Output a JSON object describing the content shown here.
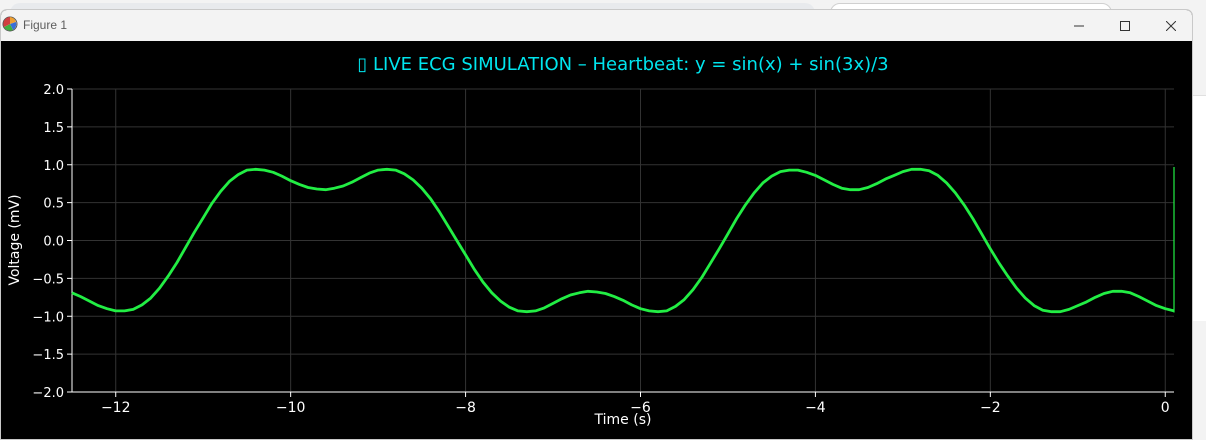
{
  "window": {
    "title": "Figure 1"
  },
  "chart_data": {
    "type": "line",
    "title": "▯ LIVE ECG SIMULATION – Heartbeat: y = sin(x) + sin(3x)/3",
    "xlabel": "Time (s)",
    "ylabel": "Voltage (mV)",
    "xlim": [
      -12.5,
      0.1
    ],
    "ylim": [
      -2.0,
      2.0
    ],
    "xticks": [
      -12,
      -10,
      -8,
      -6,
      -4,
      -2,
      0
    ],
    "xtick_labels": [
      "−12",
      "−10",
      "−8",
      "−6",
      "−4",
      "−2",
      "0"
    ],
    "yticks": [
      2.0,
      1.5,
      1.0,
      0.5,
      0.0,
      -0.5,
      -1.0,
      -1.5,
      -2.0
    ],
    "ytick_labels": [
      "2.0",
      "1.5",
      "1.0",
      "0.5",
      "0.0",
      "−0.5",
      "−1.0",
      "−1.5",
      "−2.0"
    ],
    "grid": true,
    "series": [
      {
        "color": "#22ee44",
        "x": [
          -12.5,
          -12.4,
          -12.3,
          -12.2,
          -12.1,
          -12.0,
          -11.9,
          -11.8,
          -11.7,
          -11.6,
          -11.5,
          -11.4,
          -11.3,
          -11.2,
          -11.1,
          -11.0,
          -10.9,
          -10.8,
          -10.7,
          -10.6,
          -10.5,
          -10.4,
          -10.3,
          -10.2,
          -10.1,
          -10.0,
          -9.9,
          -9.8,
          -9.7,
          -9.6,
          -9.5,
          -9.4,
          -9.3,
          -9.2,
          -9.1,
          -9.0,
          -8.9,
          -8.8,
          -8.7,
          -8.6,
          -8.5,
          -8.4,
          -8.3,
          -8.2,
          -8.1,
          -8.0,
          -7.9,
          -7.8,
          -7.7,
          -7.6,
          -7.5,
          -7.4,
          -7.3,
          -7.2,
          -7.1,
          -7.0,
          -6.9,
          -6.8,
          -6.7,
          -6.6,
          -6.5,
          -6.4,
          -6.3,
          -6.2,
          -6.1,
          -6.0,
          -5.9,
          -5.8,
          -5.7,
          -5.6,
          -5.5,
          -5.4,
          -5.3,
          -5.2,
          -5.1,
          -5.0,
          -4.9,
          -4.8,
          -4.7,
          -4.6,
          -4.5,
          -4.4,
          -4.3,
          -4.2,
          -4.1,
          -4.0,
          -3.9,
          -3.8,
          -3.7,
          -3.6,
          -3.5,
          -3.4,
          -3.3,
          -3.2,
          -3.1,
          -3.0,
          -2.9,
          -2.8,
          -2.7,
          -2.6,
          -2.5,
          -2.4,
          -2.3,
          -2.2,
          -2.1,
          -2.0,
          -1.9,
          -1.8,
          -1.7,
          -1.6,
          -1.5,
          -1.4,
          -1.3,
          -1.2,
          -1.1,
          -1.0,
          -0.9,
          -0.8,
          -0.7,
          -0.6,
          -0.5,
          -0.4,
          -0.3,
          -0.2,
          -0.1,
          0.0,
          0.1
        ],
        "y": [
          -0.69,
          -0.74,
          -0.8,
          -0.86,
          -0.9,
          -0.93,
          -0.93,
          -0.91,
          -0.85,
          -0.76,
          -0.63,
          -0.47,
          -0.29,
          -0.09,
          0.11,
          0.3,
          0.49,
          0.65,
          0.78,
          0.87,
          0.93,
          0.94,
          0.93,
          0.9,
          0.85,
          0.79,
          0.74,
          0.7,
          0.68,
          0.67,
          0.69,
          0.72,
          0.77,
          0.83,
          0.89,
          0.93,
          0.94,
          0.93,
          0.88,
          0.8,
          0.69,
          0.55,
          0.38,
          0.19,
          0.0,
          -0.19,
          -0.38,
          -0.55,
          -0.69,
          -0.8,
          -0.88,
          -0.93,
          -0.94,
          -0.93,
          -0.89,
          -0.83,
          -0.77,
          -0.72,
          -0.69,
          -0.67,
          -0.68,
          -0.7,
          -0.74,
          -0.79,
          -0.85,
          -0.9,
          -0.93,
          -0.94,
          -0.93,
          -0.87,
          -0.78,
          -0.65,
          -0.49,
          -0.3,
          -0.11,
          0.09,
          0.29,
          0.47,
          0.63,
          0.76,
          0.85,
          0.91,
          0.93,
          0.93,
          0.9,
          0.86,
          0.8,
          0.74,
          0.69,
          0.67,
          0.67,
          0.7,
          0.75,
          0.81,
          0.86,
          0.91,
          0.94,
          0.94,
          0.92,
          0.86,
          0.76,
          0.63,
          0.47,
          0.29,
          0.09,
          -0.11,
          -0.3,
          -0.47,
          -0.63,
          -0.76,
          -0.86,
          -0.92,
          -0.94,
          -0.94,
          -0.91,
          -0.86,
          -0.81,
          -0.75,
          -0.7,
          -0.67,
          -0.67,
          -0.69,
          -0.74,
          -0.8,
          -0.86,
          -0.9,
          -0.93
        ]
      }
    ],
    "cursor": {
      "x": 0.1,
      "y_min": -0.95,
      "y_max": 0.97,
      "color": "#22ee44"
    }
  }
}
